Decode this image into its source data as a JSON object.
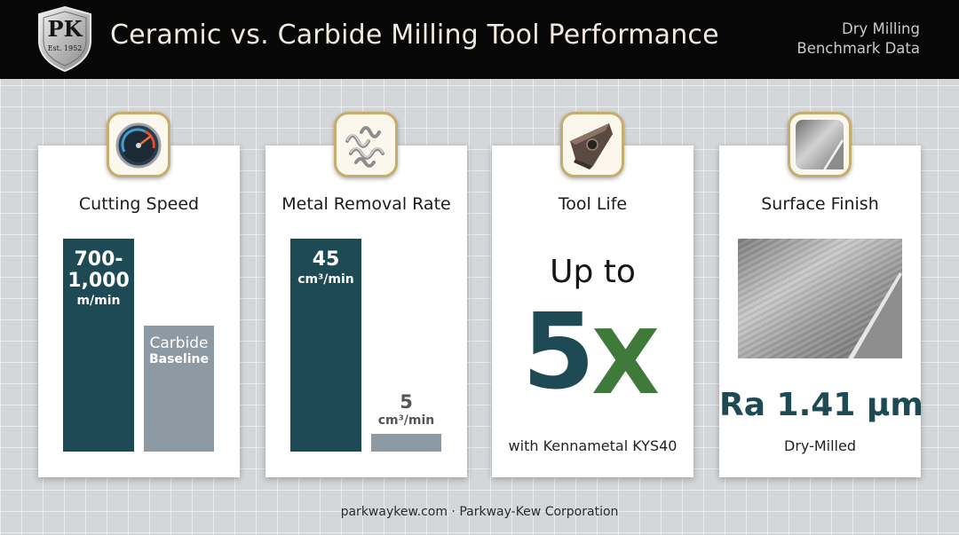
{
  "header": {
    "logo_initials": "PK",
    "logo_established": "Est. 1952",
    "title": "Ceramic vs. Carbide Milling Tool Performance",
    "note_line1": "Dry Milling",
    "note_line2": "Benchmark Data"
  },
  "cards": {
    "cutting_speed": {
      "title": "Cutting Speed",
      "icon": "speedometer-icon",
      "ceramic_value_line1": "700-",
      "ceramic_value_line2": "1,000",
      "ceramic_unit": "m/min",
      "carbide_label": "Carbide",
      "carbide_sublabel": "Baseline"
    },
    "metal_removal": {
      "title": "Metal Removal Rate",
      "icon": "metal-chips-icon",
      "ceramic_value": "45",
      "ceramic_unit": "cm³/min",
      "carbide_value": "5",
      "carbide_unit": "cm³/min"
    },
    "tool_life": {
      "title": "Tool Life",
      "icon": "cutting-insert-icon",
      "prefix": "Up to",
      "multiplier_number": "5",
      "multiplier_x": "X",
      "note": "with Kennametal KYS40"
    },
    "surface_finish": {
      "title": "Surface Finish",
      "icon": "machined-surface-icon",
      "value": "Ra 1.41 µm",
      "note": "Dry-Milled"
    }
  },
  "footer": {
    "text": "parkwaykew.com · Parkway-Kew Corporation"
  },
  "colors": {
    "header_bg": "#070707",
    "ceramic_bar": "#1d4a55",
    "carbide_bar": "#8e9aa3",
    "accent_green": "#3f7a3b",
    "badge_border": "#c7ad6c"
  }
}
